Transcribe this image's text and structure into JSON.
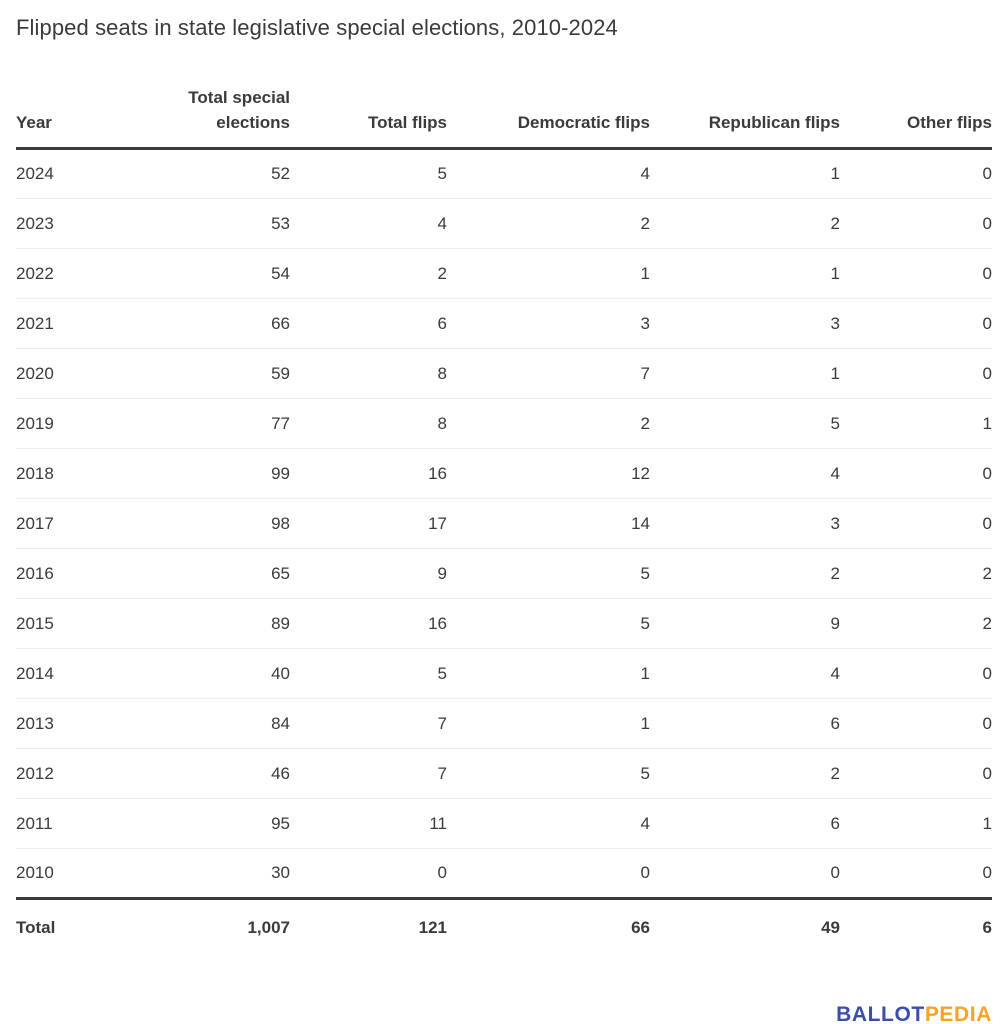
{
  "title": "Flipped seats in state legislative special elections, 2010-2024",
  "colors": {
    "text": "#3b3b3b",
    "rule_heavy": "#3b3b3b",
    "rule_light": "#ededed",
    "logo_blue": "#3b4dad",
    "logo_orange": "#f6a425"
  },
  "table": {
    "columns": [
      "Year",
      "Total special elections",
      "Total flips",
      "Democratic flips",
      "Republican flips",
      "Other flips"
    ],
    "rows": [
      [
        "2024",
        "52",
        "5",
        "4",
        "1",
        "0"
      ],
      [
        "2023",
        "53",
        "4",
        "2",
        "2",
        "0"
      ],
      [
        "2022",
        "54",
        "2",
        "1",
        "1",
        "0"
      ],
      [
        "2021",
        "66",
        "6",
        "3",
        "3",
        "0"
      ],
      [
        "2020",
        "59",
        "8",
        "7",
        "1",
        "0"
      ],
      [
        "2019",
        "77",
        "8",
        "2",
        "5",
        "1"
      ],
      [
        "2018",
        "99",
        "16",
        "12",
        "4",
        "0"
      ],
      [
        "2017",
        "98",
        "17",
        "14",
        "3",
        "0"
      ],
      [
        "2016",
        "65",
        "9",
        "5",
        "2",
        "2"
      ],
      [
        "2015",
        "89",
        "16",
        "5",
        "9",
        "2"
      ],
      [
        "2014",
        "40",
        "5",
        "1",
        "4",
        "0"
      ],
      [
        "2013",
        "84",
        "7",
        "1",
        "6",
        "0"
      ],
      [
        "2012",
        "46",
        "7",
        "5",
        "2",
        "0"
      ],
      [
        "2011",
        "95",
        "11",
        "4",
        "6",
        "1"
      ],
      [
        "2010",
        "30",
        "0",
        "0",
        "0",
        "0"
      ]
    ],
    "total_row": [
      "Total",
      "1,007",
      "121",
      "66",
      "49",
      "6"
    ]
  },
  "logo": {
    "part1": "BALLOT",
    "part2": "PEDIA"
  },
  "chart_data": {
    "type": "table",
    "title": "Flipped seats in state legislative special elections, 2010-2024",
    "columns": [
      "Year",
      "Total special elections",
      "Total flips",
      "Democratic flips",
      "Republican flips",
      "Other flips"
    ],
    "rows": [
      [
        2024,
        52,
        5,
        4,
        1,
        0
      ],
      [
        2023,
        53,
        4,
        2,
        2,
        0
      ],
      [
        2022,
        54,
        2,
        1,
        1,
        0
      ],
      [
        2021,
        66,
        6,
        3,
        3,
        0
      ],
      [
        2020,
        59,
        8,
        7,
        1,
        0
      ],
      [
        2019,
        77,
        8,
        2,
        5,
        1
      ],
      [
        2018,
        99,
        16,
        12,
        4,
        0
      ],
      [
        2017,
        98,
        17,
        14,
        3,
        0
      ],
      [
        2016,
        65,
        9,
        5,
        2,
        2
      ],
      [
        2015,
        89,
        16,
        5,
        9,
        2
      ],
      [
        2014,
        40,
        5,
        1,
        4,
        0
      ],
      [
        2013,
        84,
        7,
        1,
        6,
        0
      ],
      [
        2012,
        46,
        7,
        5,
        2,
        0
      ],
      [
        2011,
        95,
        11,
        4,
        6,
        1
      ],
      [
        2010,
        30,
        0,
        0,
        0,
        0
      ]
    ],
    "total_row": [
      "Total",
      1007,
      121,
      66,
      49,
      6
    ],
    "source_brand": "BALLOTPEDIA"
  }
}
